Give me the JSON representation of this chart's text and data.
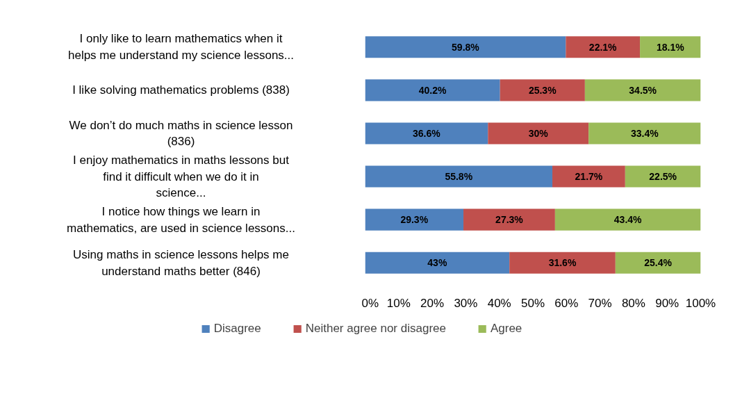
{
  "chart_data": {
    "type": "bar",
    "orientation": "horizontal",
    "stacked": true,
    "categories": [
      "I only like to learn mathematics when it helps me understand my science lessons...",
      "I like solving mathematics problems (838)",
      "We don’t do much maths in science lesson (836)",
      "I enjoy mathematics in maths lessons but find it difficult when we do it in science...",
      "I notice how things we learn in mathematics, are used in science lessons...",
      "Using maths in science lessons helps me understand maths better (846)"
    ],
    "series": [
      {
        "name": "Disagree",
        "color": "#4f81bd",
        "values": [
          59.8,
          40.2,
          36.6,
          55.8,
          29.3,
          43
        ],
        "value_labels": [
          "59.8%",
          "40.2%",
          "36.6%",
          "55.8%",
          "29.3%",
          "43%"
        ]
      },
      {
        "name": "Neither agree nor disagree",
        "color": "#c0504d",
        "values": [
          22.1,
          25.3,
          30,
          21.7,
          27.3,
          31.6
        ],
        "value_labels": [
          "22.1%",
          "25.3%",
          "30%",
          "21.7%",
          "27.3%",
          "31.6%"
        ]
      },
      {
        "name": "Agree",
        "color": "#9bbb59",
        "values": [
          18.1,
          34.5,
          33.4,
          22.5,
          43.4,
          25.4
        ],
        "value_labels": [
          "18.1%",
          "34.5%",
          "33.4%",
          "22.5%",
          "43.4%",
          "25.4%"
        ]
      }
    ],
    "xlim": [
      0,
      100
    ],
    "xticks": [
      {
        "value": 0,
        "label": "0%"
      },
      {
        "value": 10,
        "label": "10%"
      },
      {
        "value": 20,
        "label": "20%"
      },
      {
        "value": 30,
        "label": "30%"
      },
      {
        "value": 40,
        "label": "40%"
      },
      {
        "value": 50,
        "label": "50%"
      },
      {
        "value": 60,
        "label": "60%"
      },
      {
        "value": 70,
        "label": "70%"
      },
      {
        "value": 80,
        "label": "80%"
      },
      {
        "value": 90,
        "label": "90%"
      },
      {
        "value": 100,
        "label": "100%"
      }
    ],
    "grid": false,
    "legend": "bottom"
  }
}
